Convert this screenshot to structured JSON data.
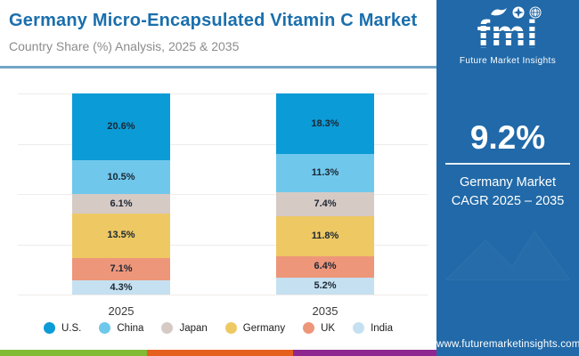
{
  "header": {
    "title": "Germany Micro-Encapsulated Vitamin C Market",
    "subtitle": "Country Share (%) Analysis, 2025 & 2035"
  },
  "chart_data": {
    "type": "bar",
    "stacked": true,
    "title": "Germany Micro-Encapsulated Vitamin C Market — Country Share (%) Analysis",
    "categories": [
      "2025",
      "2035"
    ],
    "series": [
      {
        "name": "U.S.",
        "color": "#0b9bd7",
        "values": [
          20.6,
          18.3
        ]
      },
      {
        "name": "China",
        "color": "#6fc8ec",
        "values": [
          10.5,
          11.3
        ]
      },
      {
        "name": "Japan",
        "color": "#d6cac5",
        "values": [
          6.1,
          7.4
        ]
      },
      {
        "name": "Germany",
        "color": "#eec863",
        "values": [
          13.5,
          11.8
        ]
      },
      {
        "name": "UK",
        "color": "#ed967a",
        "values": [
          7.1,
          6.4
        ]
      },
      {
        "name": "India",
        "color": "#c5e1f1",
        "values": [
          4.3,
          5.2
        ]
      }
    ],
    "value_suffix": "%",
    "grid": true,
    "legend_position": "bottom",
    "label_color": "#1c2733"
  },
  "sidebar": {
    "logo": {
      "word": "fmi",
      "tagline": "Future Market Insights"
    },
    "stat_value": "9.2%",
    "stat_label_line1": "Germany Market",
    "stat_label_line2": "CAGR 2025 – 2035",
    "website": "www.futuremarketinsights.com"
  },
  "colors": {
    "title_accent": "#1a6fad",
    "header_divider": "#72a5c6",
    "sidebar_bg": "#2169a8",
    "gridline": "#efecea",
    "footer_strip": [
      "#83bb34",
      "#e55f1d",
      "#8e2890"
    ]
  }
}
